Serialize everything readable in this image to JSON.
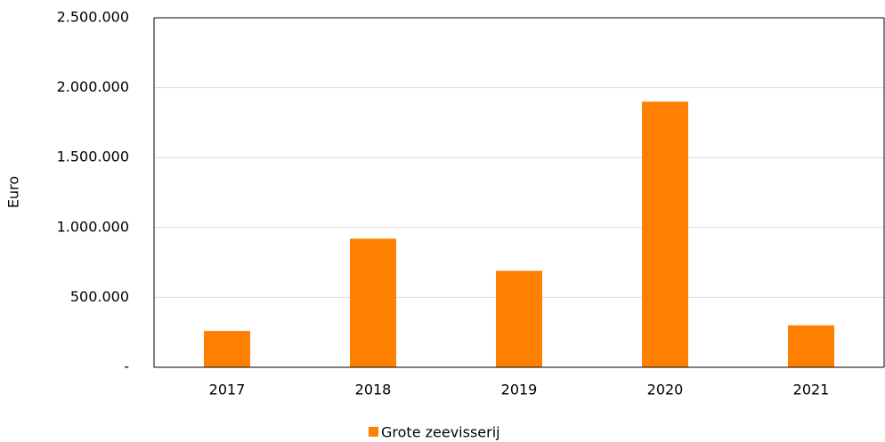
{
  "chart_data": {
    "type": "bar",
    "y_label": "Euro",
    "categories": [
      "2017",
      "2018",
      "2019",
      "2020",
      "2021"
    ],
    "series": [
      {
        "name": "Grote zeevisserij",
        "color": "#ff7f00",
        "values": [
          260000,
          920000,
          690000,
          1900000,
          300000
        ]
      }
    ],
    "ylim": [
      0,
      2500000
    ],
    "yticks": [
      {
        "value": 0,
        "label": "-"
      },
      {
        "value": 500000,
        "label": "500.000"
      },
      {
        "value": 1000000,
        "label": "1.000.000"
      },
      {
        "value": 1500000,
        "label": "1.500.000"
      },
      {
        "value": 2000000,
        "label": "2.000.000"
      },
      {
        "value": 2500000,
        "label": "2.500.000"
      }
    ],
    "grid": true,
    "legend": "bottom"
  }
}
